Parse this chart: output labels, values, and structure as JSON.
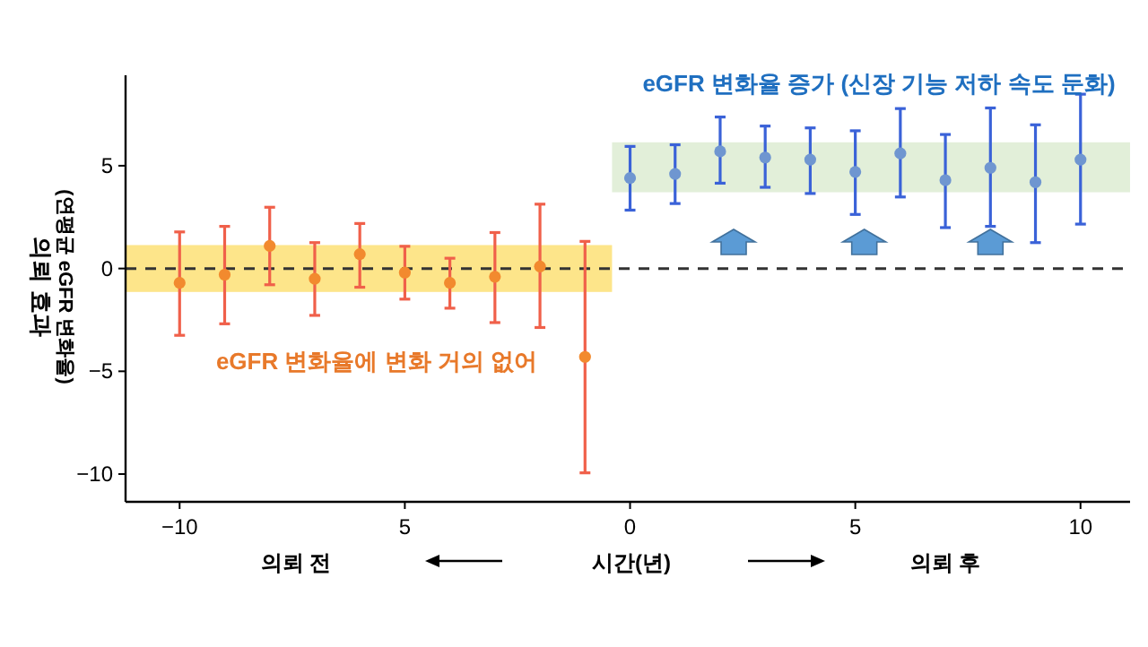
{
  "chart_data": {
    "type": "scatter",
    "xlabel": "시간(년)",
    "ylabel": "의뢰 효과\n(연평균 eGFR 변화율)",
    "series": [
      {
        "color": "#f28a2e",
        "x": [
          -10,
          -9,
          -8,
          -7,
          -6,
          -5,
          -4,
          -3,
          -2,
          -1
        ],
        "values": [
          -0.7,
          -0.3,
          1.1,
          -0.5,
          0.7,
          -0.2,
          -0.7,
          -0.4,
          0.1,
          -4.3
        ],
        "errors": [
          [
            -3.25,
            1.78
          ],
          [
            -2.69,
            2.05
          ],
          [
            -0.79,
            2.98
          ],
          [
            -2.28,
            1.26
          ],
          [
            -0.91,
            2.19
          ],
          [
            -1.49,
            1.08
          ],
          [
            -1.93,
            0.5
          ],
          [
            -2.63,
            1.75
          ],
          [
            -2.87,
            3.13
          ],
          [
            -9.94,
            1.32
          ]
        ]
      },
      {
        "color": "#6f96d0",
        "x": [
          0,
          1,
          2,
          3,
          4,
          5,
          6,
          7,
          8,
          9,
          10
        ],
        "values": [
          4.4,
          4.6,
          5.7,
          5.4,
          5.3,
          4.7,
          5.6,
          4.3,
          4.9,
          4.2,
          5.3
        ],
        "errors": [
          [
            2.84,
            5.94
          ],
          [
            3.16,
            6.02
          ],
          [
            4.15,
            7.37
          ],
          [
            3.95,
            6.93
          ],
          [
            3.65,
            6.84
          ],
          [
            2.63,
            6.7
          ],
          [
            3.48,
            7.78
          ],
          [
            1.99,
            6.52
          ],
          [
            2.05,
            7.81
          ],
          [
            1.26,
            6.99
          ],
          [
            2.16,
            8.48
          ]
        ]
      }
    ],
    "bands": [
      {
        "axis": "y",
        "from": -1.14,
        "to": 1.14,
        "color": "#fde58a"
      },
      {
        "axis": "y",
        "from": 3.71,
        "to": 6.14,
        "color": "#e2efd9"
      }
    ],
    "ref_lines": [
      {
        "axis": "y",
        "value": 0,
        "color": "#333333",
        "line_style": "dashed"
      }
    ],
    "annotations": [
      "eGFR 변화율에 변화 거의 없어",
      "eGFR 변화율 증가 (신장 기능 저하 속도 둔화)",
      "의뢰 전",
      "의뢰 후"
    ],
    "xlim": [
      -11.2,
      11.1
    ],
    "ylim": [
      -11.35,
      9.4
    ],
    "xticks": [
      {
        "value": -10,
        "label": "−10"
      },
      {
        "value": -5,
        "label": "5"
      },
      0,
      5,
      10
    ],
    "yticks": [
      {
        "value": -10,
        "label": "−10"
      },
      {
        "value": -5,
        "label": "−5"
      },
      0,
      5
    ],
    "marker": "circle",
    "grid": false
  }
}
